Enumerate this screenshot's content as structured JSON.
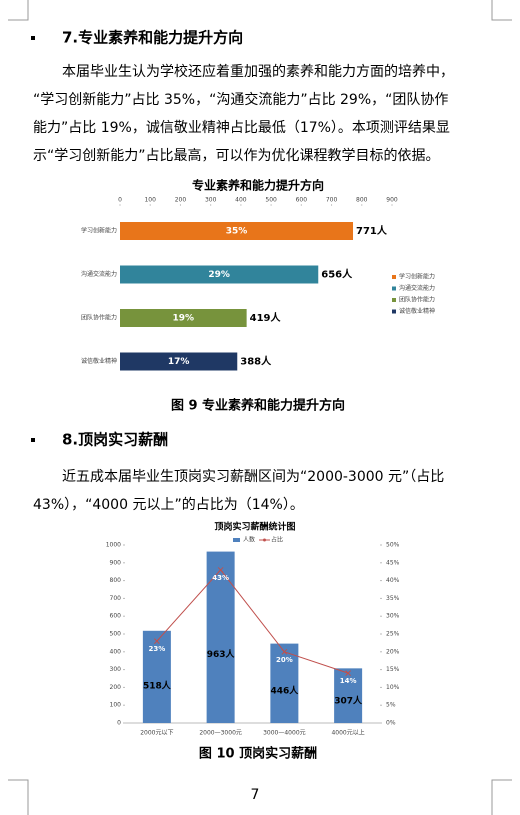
{
  "section7": {
    "heading": "7.专业素养和能力提升方向",
    "paragraph": [
      "本届毕业生认为学校还应着重加强的素养和能力方面的培养中，",
      "“学习创新能力”占比 35%，“沟通交流能力”占比 29%，“团队协作",
      "能力”占比 19%，诚信敬业精神占比最低（17%）。本项测评结果显",
      "示“学习创新能力”占比最高，可以作为优化课程教学目标的依据。"
    ],
    "chart": {
      "type": "bar",
      "orientation": "horizontal",
      "title": "专业素养和能力提升方向",
      "categories": [
        "学习创新能力",
        "沟通交流能力",
        "团队协作能力",
        "诚信敬业精神"
      ],
      "values": [
        771,
        656,
        419,
        388
      ],
      "value_labels": [
        "771人",
        "656人",
        "419人",
        "388人"
      ],
      "colors": [
        "#e8751a",
        "#31849b",
        "#77933c",
        "#1f3864"
      ],
      "shares": {
        "values": [
          35,
          29,
          19,
          17
        ],
        "value_labels": [
          "35%",
          "29%",
          "19%",
          "17%"
        ]
      },
      "xlim": [
        0,
        900
      ],
      "xticks": [
        0,
        100,
        200,
        300,
        400,
        500,
        600,
        700,
        800,
        900
      ],
      "legend": "right"
    },
    "caption": "图 9 专业素养和能力提升方向"
  },
  "section8": {
    "heading": "8.顶岗实习薪酬",
    "paragraph": [
      "近五成本届毕业生顶岗实习薪酬区间为“2000-3000 元”（占比",
      "43%），“4000 元以上”的占比为（14%）。"
    ],
    "chart": {
      "type": "bar-line",
      "title": "顶岗实习薪酬统计图",
      "categories": [
        "2000元以下",
        "2000—3000元",
        "3000—4000元",
        "4000元以上"
      ],
      "series": [
        {
          "name": "人数",
          "type": "bar",
          "color": "#4f81bd",
          "values": [
            518,
            963,
            446,
            307
          ],
          "value_labels": [
            "518人",
            "963人",
            "446人",
            "307人"
          ]
        },
        {
          "name": "占比",
          "type": "line",
          "axis": "y2",
          "color": "#c0504d",
          "values": [
            23,
            43,
            20,
            14
          ],
          "value_labels": [
            "23%",
            "43%",
            "20%",
            "14%"
          ]
        }
      ],
      "ylim": [
        0,
        1000
      ],
      "yticks": [
        0,
        100,
        200,
        300,
        400,
        500,
        600,
        700,
        800,
        900,
        1000
      ],
      "y2lim": [
        0,
        50
      ],
      "y2ticks": [
        {
          "value": 0,
          "label": "0%"
        },
        {
          "value": 5,
          "label": "5%"
        },
        {
          "value": 10,
          "label": "10%"
        },
        {
          "value": 15,
          "label": "15%"
        },
        {
          "value": 20,
          "label": "20%"
        },
        {
          "value": 25,
          "label": "25%"
        },
        {
          "value": 30,
          "label": "30%"
        },
        {
          "value": 35,
          "label": "35%"
        },
        {
          "value": 40,
          "label": "40%"
        },
        {
          "value": 45,
          "label": "45%"
        },
        {
          "value": 50,
          "label": "50%"
        }
      ],
      "legend": "top"
    },
    "caption": "图 10 顶岗实习薪酬"
  },
  "page_number": "7"
}
